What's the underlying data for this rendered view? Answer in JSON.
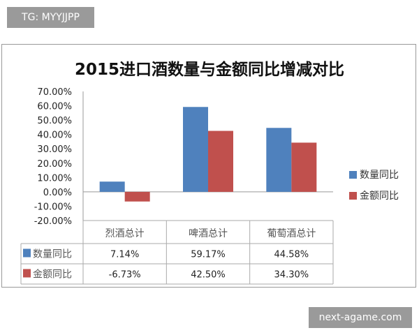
{
  "watermark_top": "TG: MYYJJPP",
  "watermark_bottom": "next-agame.com",
  "chart_data": {
    "type": "bar",
    "title": "2015进口酒数量与金额同比增减对比",
    "categories": [
      "烈酒总计",
      "啤酒总计",
      "葡萄酒总计"
    ],
    "series": [
      {
        "name": "数量同比",
        "values": [
          7.14,
          59.17,
          44.58
        ],
        "labels": [
          "7.14%",
          "59.17%",
          "44.58%"
        ],
        "color": "#4f81bd"
      },
      {
        "name": "金额同比",
        "values": [
          -6.73,
          42.5,
          34.3
        ],
        "labels": [
          "-6.73%",
          "42.50%",
          "34.30%"
        ],
        "color": "#c0504d"
      }
    ],
    "ylim": [
      -20,
      70
    ],
    "yticks": [
      "70.00%",
      "60.00%",
      "50.00%",
      "40.00%",
      "30.00%",
      "20.00%",
      "10.00%",
      "0.00%",
      "-10.00%",
      "-20.00%"
    ],
    "legend": "right",
    "data_table": true
  }
}
